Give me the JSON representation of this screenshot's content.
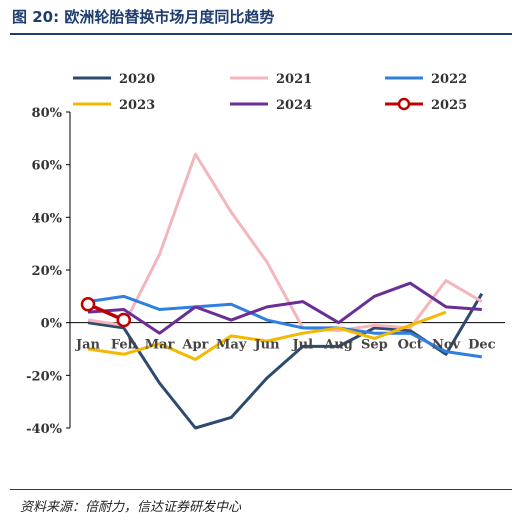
{
  "header": {
    "title": "图 20:  欧洲轮胎替换市场月度同比趋势"
  },
  "footer": {
    "source": "资料来源：倍耐力，信达证券研发中心"
  },
  "chart_data": {
    "type": "line",
    "title": "",
    "xlabel": "",
    "ylabel": "",
    "categories": [
      "Jan",
      "Feb",
      "Mar",
      "Apr",
      "May",
      "Jun",
      "Jul",
      "Aug",
      "Sep",
      "Oct",
      "Nov",
      "Dec"
    ],
    "ylim": [
      -40,
      80
    ],
    "yticks": [
      80,
      60,
      40,
      20,
      0,
      -20,
      -40
    ],
    "y_unit": "%",
    "grid": false,
    "legend_position": "top",
    "series": [
      {
        "name": "2020",
        "color": "#2e4a6e",
        "marker": false,
        "values": [
          0,
          -2,
          -23,
          -40,
          -36,
          -21,
          -9,
          -9,
          -2,
          -3,
          -12,
          11
        ]
      },
      {
        "name": "2021",
        "color": "#f4b6bd",
        "marker": false,
        "values": [
          1,
          -1,
          26,
          64,
          42,
          23,
          -2,
          -3,
          -1,
          -2,
          16,
          8
        ]
      },
      {
        "name": "2022",
        "color": "#2f7fe0",
        "marker": false,
        "values": [
          8,
          10,
          5,
          6,
          7,
          1,
          -2,
          -2,
          -4,
          -4,
          -11,
          -13
        ]
      },
      {
        "name": "2023",
        "color": "#f5b800",
        "marker": false,
        "values": [
          -10,
          -12,
          -8,
          -14,
          -5,
          -7,
          -4,
          -2,
          -6,
          -1,
          4,
          null
        ]
      },
      {
        "name": "2024",
        "color": "#6a2e94",
        "marker": false,
        "values": [
          4,
          5,
          -4,
          6,
          1,
          6,
          8,
          0,
          10,
          15,
          6,
          5
        ]
      },
      {
        "name": "2025",
        "color": "#c00000",
        "marker": true,
        "values": [
          7,
          1,
          null,
          null,
          null,
          null,
          null,
          null,
          null,
          null,
          null,
          null
        ]
      }
    ]
  }
}
